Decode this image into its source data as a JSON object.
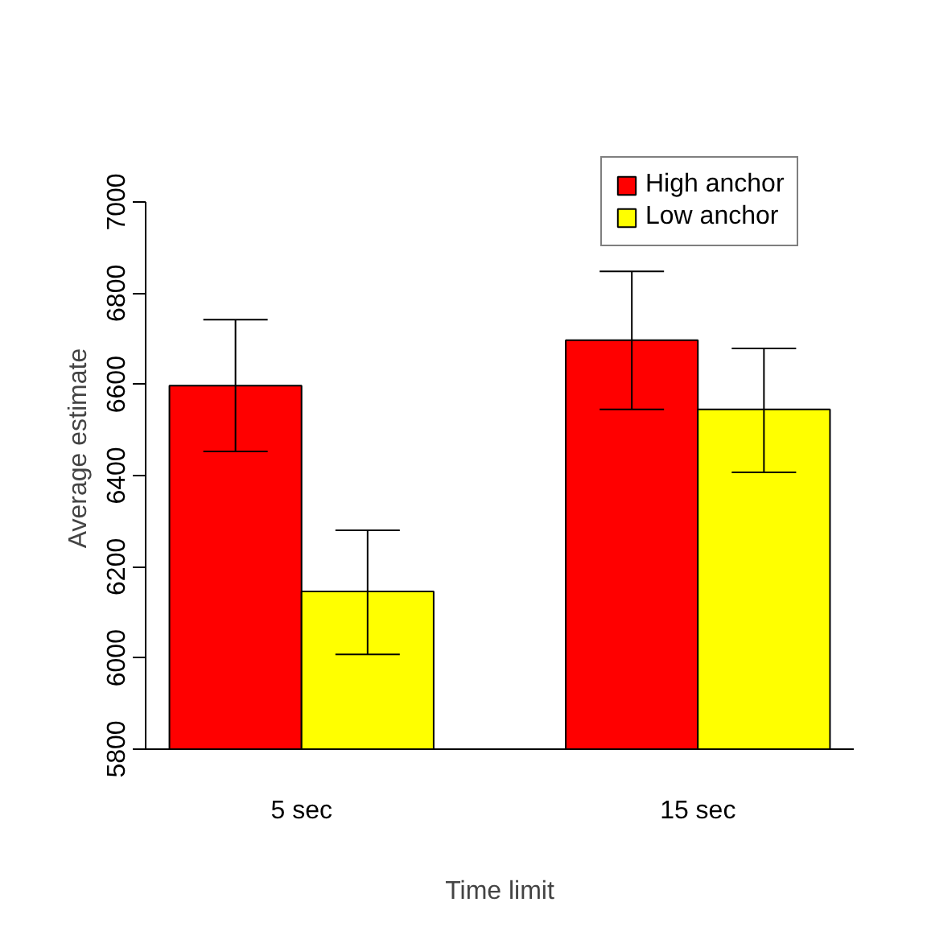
{
  "chart_data": {
    "type": "bar",
    "xlabel": "Time limit",
    "ylabel": "Average estimate",
    "categories": [
      "5 sec",
      "15 sec"
    ],
    "series": [
      {
        "name": "High anchor",
        "color": "#ff0000",
        "values": [
          6597,
          6697
        ],
        "errors": [
          [
            6453,
            6742
          ],
          [
            6545,
            6848
          ]
        ]
      },
      {
        "name": "Low anchor",
        "color": "#ffff00",
        "values": [
          6146,
          6545
        ],
        "errors": [
          [
            6008,
            6280
          ],
          [
            6407,
            6679
          ]
        ]
      }
    ],
    "ylim": [
      5800,
      7000
    ],
    "yticks": [
      5800,
      6000,
      6200,
      6400,
      6600,
      6800,
      7000
    ],
    "grid": false,
    "legend": "top right"
  }
}
